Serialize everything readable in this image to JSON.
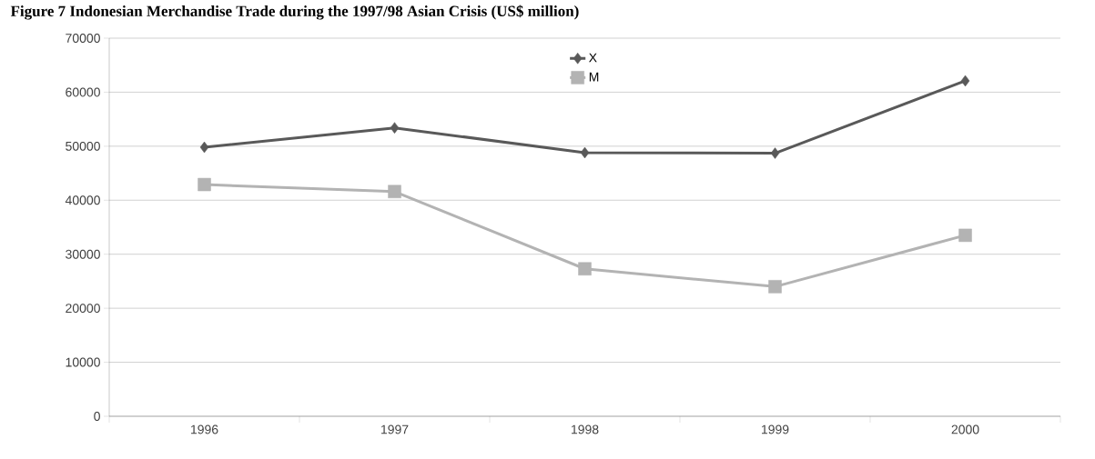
{
  "chart_data": {
    "type": "line",
    "title": "Figure 7 Indonesian Merchandise Trade during the 1997/98 Asian Crisis (US$ million)",
    "categories": [
      "1996",
      "1997",
      "1998",
      "1999",
      "2000"
    ],
    "series": [
      {
        "name": "X",
        "color": "#595959",
        "marker": "diamond",
        "values": [
          49800,
          53400,
          48800,
          48700,
          62100
        ]
      },
      {
        "name": "M",
        "color": "#b3b3b3",
        "marker": "square",
        "values": [
          42900,
          41600,
          27300,
          24000,
          33500
        ]
      }
    ],
    "ylim": [
      0,
      70000
    ],
    "yticks": [
      0,
      10000,
      20000,
      30000,
      40000,
      50000,
      60000,
      70000
    ],
    "grid": "y",
    "legend": "top",
    "line_style": "solid"
  }
}
